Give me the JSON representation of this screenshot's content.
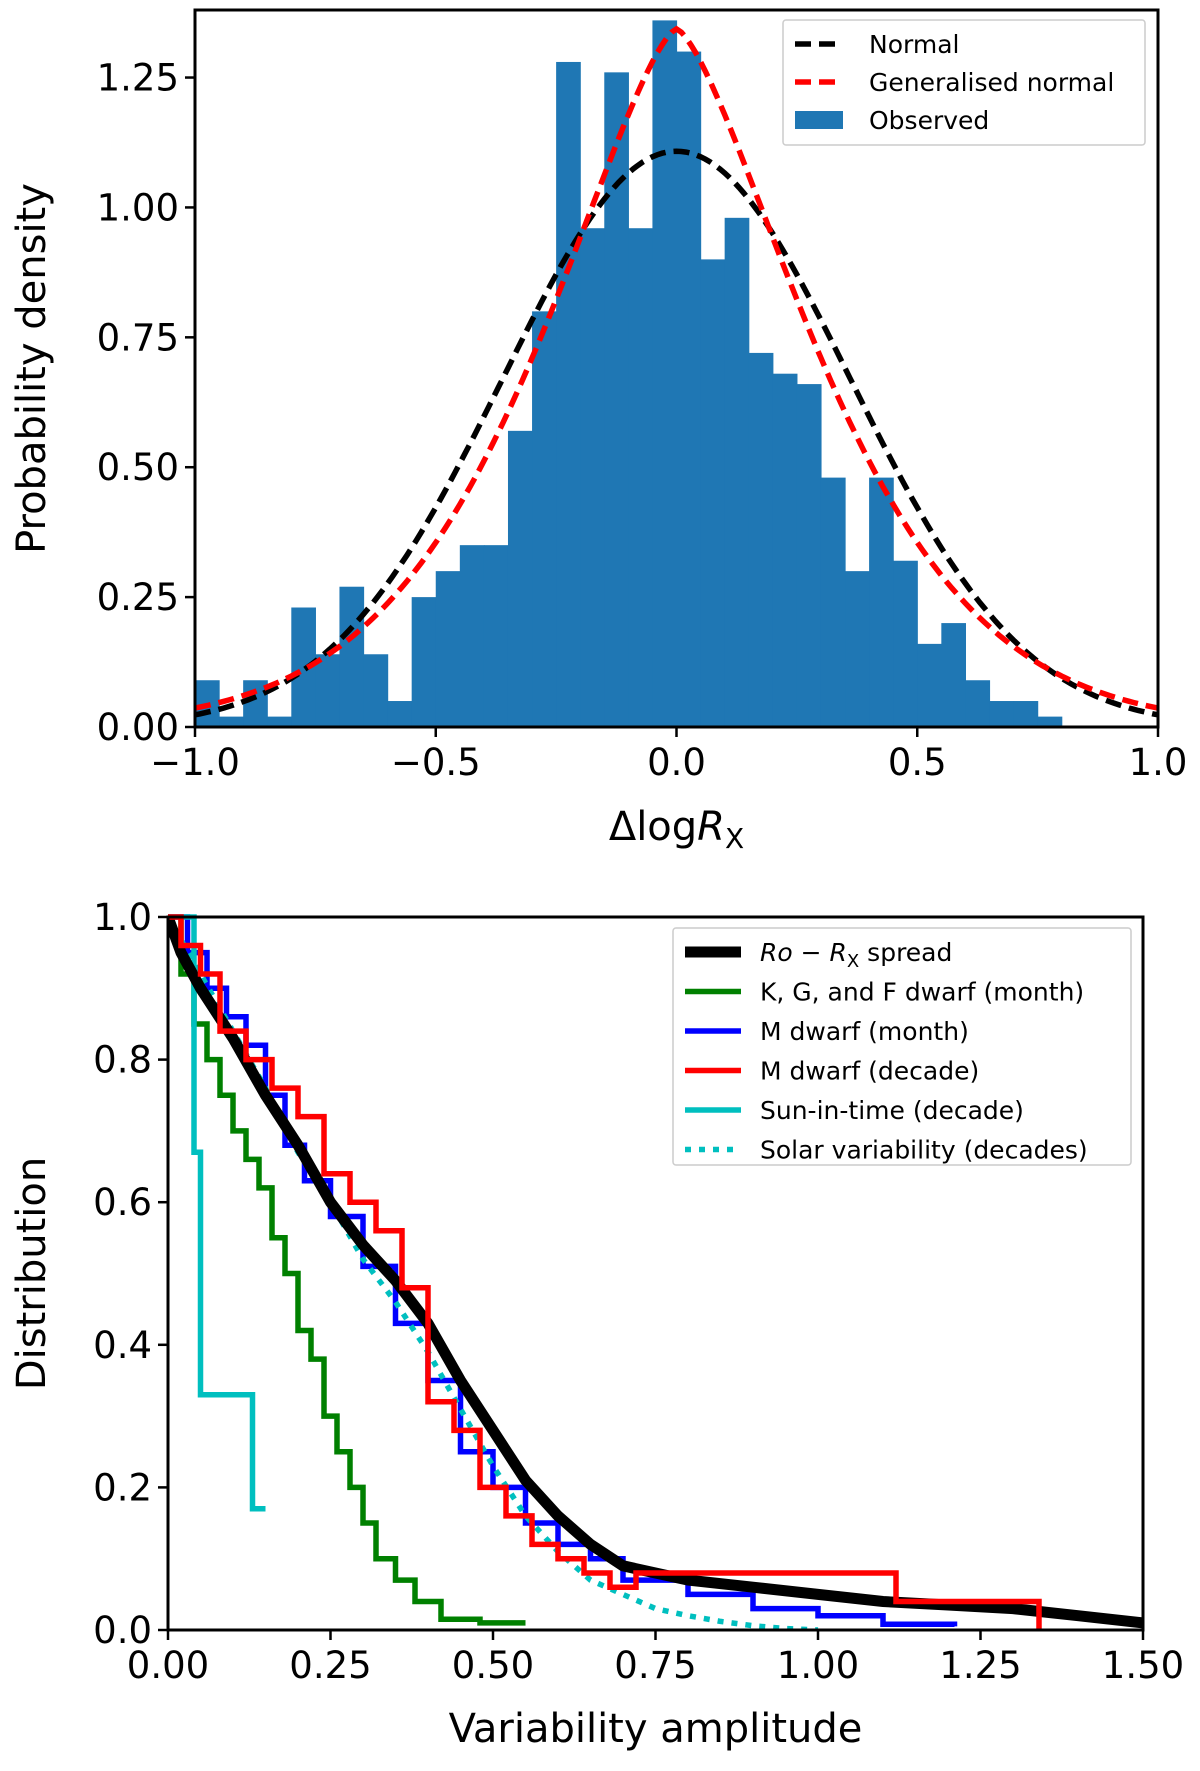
{
  "chart_data": [
    {
      "type": "histogram",
      "xlabel": "ΔlogR",
      "xlabel_subscript": "X",
      "ylabel": "Probability density",
      "xlim": [
        -1.0,
        1.0
      ],
      "ylim": [
        0.0,
        1.38
      ],
      "xticks": [
        -1.0,
        -0.5,
        0.0,
        0.5,
        1.0
      ],
      "xtick_labels": [
        "−1.0",
        "−0.5",
        "0.0",
        "0.5",
        "1.0"
      ],
      "yticks": [
        0.0,
        0.25,
        0.5,
        0.75,
        1.0,
        1.25
      ],
      "ytick_labels": [
        "0.00",
        "0.25",
        "0.50",
        "0.75",
        "1.00",
        "1.25"
      ],
      "legend": {
        "position": "top-right",
        "entries": [
          {
            "label": "Normal",
            "color": "#000000",
            "style": "dashed"
          },
          {
            "label": "Generalised normal",
            "color": "#ff0000",
            "style": "dashed"
          },
          {
            "label": "Observed",
            "color": "#1f77b4",
            "style": "patch"
          }
        ]
      },
      "histogram": {
        "color": "#1f77b4",
        "bin_width": 0.05,
        "bin_start": -1.0,
        "values": [
          0.09,
          0.02,
          0.09,
          0.02,
          0.23,
          0.14,
          0.27,
          0.14,
          0.05,
          0.25,
          0.3,
          0.35,
          0.35,
          0.57,
          0.8,
          1.28,
          0.96,
          1.26,
          0.96,
          1.36,
          1.3,
          0.9,
          0.98,
          0.72,
          0.68,
          0.66,
          0.48,
          0.3,
          0.48,
          0.32,
          0.16,
          0.2,
          0.09,
          0.05,
          0.05,
          0.02,
          0.0,
          0.0,
          0.0,
          0.0
        ]
      },
      "series": [
        {
          "name": "Normal",
          "color": "#000000",
          "style": "dashed",
          "fn": "normal",
          "params": {
            "mu": 0.0,
            "sigma": 0.36
          }
        },
        {
          "name": "Generalised normal",
          "color": "#ff0000",
          "style": "dashed",
          "fn": "gennorm",
          "params": {
            "mu": 0.0,
            "alpha": 0.41,
            "beta": 1.44
          }
        }
      ]
    },
    {
      "type": "line",
      "xlabel": "Variability amplitude",
      "ylabel": "Distribution",
      "xlim": [
        0.0,
        1.5
      ],
      "ylim": [
        0.0,
        1.0
      ],
      "xticks": [
        0.0,
        0.25,
        0.5,
        0.75,
        1.0,
        1.25,
        1.5
      ],
      "xtick_labels": [
        "0.00",
        "0.25",
        "0.50",
        "0.75",
        "1.00",
        "1.25",
        "1.50"
      ],
      "yticks": [
        0.0,
        0.2,
        0.4,
        0.6,
        0.8,
        1.0
      ],
      "ytick_labels": [
        "0.0",
        "0.2",
        "0.4",
        "0.6",
        "0.8",
        "1.0"
      ],
      "legend": {
        "position": "top-right",
        "entries": [
          {
            "label": "Ro − R",
            "label_subscript": "X",
            "label_suffix": " spread",
            "color": "#000000",
            "style": "thick"
          },
          {
            "label": "K, G, and F dwarf (month)",
            "color": "#008000",
            "style": "solid"
          },
          {
            "label": "M dwarf (month)",
            "color": "#0000ff",
            "style": "solid"
          },
          {
            "label": "M dwarf (decade)",
            "color": "#ff0000",
            "style": "solid"
          },
          {
            "label": "Sun-in-time (decade)",
            "color": "#00bfbf",
            "style": "solid"
          },
          {
            "label": "Solar variability (decades)",
            "color": "#00bfbf",
            "style": "dotted"
          }
        ]
      },
      "series": [
        {
          "name": "Ro − RX spread",
          "color": "#000000",
          "style": "thick",
          "shape": "smooth",
          "x": [
            0.0,
            0.02,
            0.05,
            0.1,
            0.15,
            0.2,
            0.25,
            0.3,
            0.35,
            0.4,
            0.45,
            0.5,
            0.55,
            0.6,
            0.65,
            0.7,
            0.75,
            0.8,
            0.9,
            1.0,
            1.1,
            1.2,
            1.3,
            1.4,
            1.5
          ],
          "y": [
            1.0,
            0.95,
            0.9,
            0.83,
            0.75,
            0.68,
            0.6,
            0.54,
            0.49,
            0.43,
            0.35,
            0.28,
            0.21,
            0.16,
            0.12,
            0.09,
            0.08,
            0.07,
            0.06,
            0.05,
            0.04,
            0.035,
            0.03,
            0.02,
            0.01
          ]
        },
        {
          "name": "K, G, and F dwarf (month)",
          "color": "#008000",
          "style": "solid",
          "shape": "step",
          "x": [
            0.0,
            0.02,
            0.04,
            0.06,
            0.08,
            0.1,
            0.12,
            0.14,
            0.16,
            0.18,
            0.2,
            0.22,
            0.24,
            0.26,
            0.28,
            0.3,
            0.32,
            0.35,
            0.38,
            0.42,
            0.48,
            0.55
          ],
          "y": [
            1.0,
            0.92,
            0.85,
            0.8,
            0.75,
            0.7,
            0.66,
            0.62,
            0.55,
            0.5,
            0.42,
            0.38,
            0.3,
            0.25,
            0.2,
            0.15,
            0.1,
            0.07,
            0.04,
            0.015,
            0.01,
            0.01
          ]
        },
        {
          "name": "M dwarf (month)",
          "color": "#0000ff",
          "style": "solid",
          "shape": "step",
          "x": [
            0.0,
            0.03,
            0.06,
            0.09,
            0.12,
            0.15,
            0.18,
            0.21,
            0.25,
            0.3,
            0.35,
            0.4,
            0.45,
            0.5,
            0.55,
            0.6,
            0.65,
            0.7,
            0.8,
            0.9,
            1.0,
            1.1,
            1.21
          ],
          "y": [
            1.0,
            0.95,
            0.9,
            0.86,
            0.82,
            0.75,
            0.68,
            0.63,
            0.58,
            0.51,
            0.43,
            0.35,
            0.25,
            0.2,
            0.15,
            0.12,
            0.1,
            0.07,
            0.05,
            0.03,
            0.02,
            0.008,
            0.005
          ]
        },
        {
          "name": "M dwarf (decade)",
          "color": "#ff0000",
          "style": "solid",
          "shape": "step",
          "x": [
            0.0,
            0.02,
            0.05,
            0.08,
            0.12,
            0.16,
            0.2,
            0.24,
            0.28,
            0.32,
            0.36,
            0.4,
            0.44,
            0.48,
            0.52,
            0.56,
            0.6,
            0.64,
            0.68,
            0.72,
            1.12,
            1.34
          ],
          "y": [
            1.0,
            0.96,
            0.92,
            0.84,
            0.8,
            0.76,
            0.72,
            0.64,
            0.6,
            0.56,
            0.48,
            0.32,
            0.28,
            0.2,
            0.16,
            0.12,
            0.1,
            0.08,
            0.06,
            0.08,
            0.04,
            0.0
          ]
        },
        {
          "name": "Sun-in-time (decade)",
          "color": "#00bfbf",
          "style": "solid",
          "shape": "step",
          "x": [
            0.0,
            0.04,
            0.05,
            0.13,
            0.15
          ],
          "y": [
            1.0,
            0.67,
            0.33,
            0.17,
            0.17
          ]
        },
        {
          "name": "Solar variability (decades)",
          "color": "#00bfbf",
          "style": "dotted",
          "shape": "smooth",
          "x": [
            0.0,
            0.05,
            0.1,
            0.15,
            0.2,
            0.25,
            0.3,
            0.35,
            0.4,
            0.45,
            0.5,
            0.55,
            0.6,
            0.65,
            0.7,
            0.75,
            0.8,
            0.85,
            0.9,
            0.95,
            1.0
          ],
          "y": [
            1.0,
            0.92,
            0.84,
            0.76,
            0.67,
            0.6,
            0.52,
            0.46,
            0.39,
            0.31,
            0.23,
            0.16,
            0.11,
            0.07,
            0.05,
            0.03,
            0.02,
            0.012,
            0.006,
            0.002,
            0.0
          ]
        }
      ]
    }
  ]
}
